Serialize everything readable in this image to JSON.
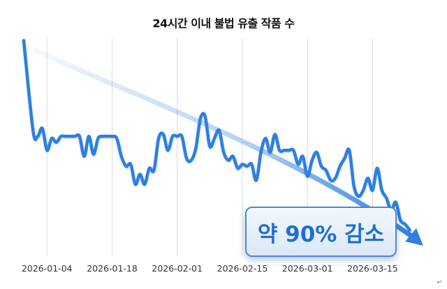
{
  "chart_data": {
    "type": "line",
    "title": "24시간 이내 불법 유출 작품 수",
    "xlabel": "",
    "ylabel": "",
    "x_ticks": [
      "2026-01-04",
      "2026-01-18",
      "2026-02-01",
      "2026-02-15",
      "2026-03-01",
      "2026-03-15"
    ],
    "x_range": [
      "2025-12-30",
      "2026-03-25"
    ],
    "y_axis_labels_shown": false,
    "grid": "vertical",
    "series": [
      {
        "color": "#2f7fe0",
        "x": [
          "2025-12-30",
          "2026-01-01",
          "2026-01-02",
          "2026-01-03",
          "2026-01-04",
          "2026-01-05",
          "2026-01-06",
          "2026-01-07",
          "2026-01-08",
          "2026-01-09",
          "2026-01-10",
          "2026-01-11",
          "2026-01-12",
          "2026-01-13",
          "2026-01-14",
          "2026-01-15",
          "2026-01-16",
          "2026-01-17",
          "2026-01-18",
          "2026-01-19",
          "2026-01-20",
          "2026-01-21",
          "2026-01-22",
          "2026-01-23",
          "2026-01-24",
          "2026-01-25",
          "2026-01-26",
          "2026-01-27",
          "2026-01-28",
          "2026-01-29",
          "2026-01-30",
          "2026-01-31",
          "2026-02-01",
          "2026-02-02",
          "2026-02-03",
          "2026-02-04",
          "2026-02-05",
          "2026-02-06",
          "2026-02-07",
          "2026-02-08",
          "2026-02-09",
          "2026-02-10",
          "2026-02-11",
          "2026-02-12",
          "2026-02-13",
          "2026-02-14",
          "2026-02-15",
          "2026-02-16",
          "2026-02-17",
          "2026-02-18",
          "2026-02-19",
          "2026-02-20",
          "2026-02-21",
          "2026-02-22",
          "2026-02-23",
          "2026-02-24",
          "2026-02-25",
          "2026-02-26",
          "2026-02-27",
          "2026-02-28",
          "2026-03-01",
          "2026-03-02",
          "2026-03-03",
          "2026-03-04",
          "2026-03-05",
          "2026-03-06",
          "2026-03-07",
          "2026-03-08",
          "2026-03-09",
          "2026-03-10",
          "2026-03-11",
          "2026-03-12",
          "2026-03-13",
          "2026-03-14",
          "2026-03-15",
          "2026-03-16",
          "2026-03-17",
          "2026-03-18",
          "2026-03-19",
          "2026-03-20",
          "2026-03-21",
          "2026-03-22",
          "2026-03-23"
        ],
        "values": [
          100,
          55,
          52,
          56,
          45,
          51,
          49,
          52,
          52,
          52,
          52,
          52,
          42,
          52,
          43,
          51,
          52,
          52,
          52,
          51,
          42,
          37,
          38,
          28,
          33,
          28,
          36,
          35,
          51,
          53,
          45,
          52,
          52,
          52,
          41,
          40,
          46,
          61,
          62,
          47,
          51,
          55,
          44,
          40,
          42,
          36,
          38,
          37,
          38,
          30,
          44,
          51,
          44,
          53,
          45,
          45,
          45,
          45,
          38,
          42,
          32,
          40,
          44,
          37,
          35,
          30,
          31,
          37,
          41,
          45,
          27,
          22,
          25,
          31,
          25,
          36,
          25,
          21,
          15,
          19,
          10,
          8,
          5
        ]
      }
    ],
    "trend_arrow_color": "#2f7fe0"
  },
  "callout": {
    "text": "약 90% 감소"
  },
  "corner_mark": "↵"
}
